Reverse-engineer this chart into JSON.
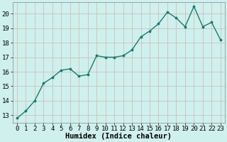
{
  "x": [
    0,
    1,
    2,
    3,
    4,
    5,
    6,
    7,
    8,
    9,
    10,
    11,
    12,
    13,
    14,
    15,
    16,
    17,
    18,
    19,
    20,
    21,
    22,
    23
  ],
  "y": [
    12.8,
    13.3,
    14.0,
    15.2,
    15.6,
    16.1,
    16.2,
    15.7,
    15.8,
    17.1,
    17.0,
    17.0,
    17.1,
    17.5,
    18.4,
    18.8,
    19.3,
    20.1,
    19.7,
    19.1,
    20.5,
    19.1,
    19.4,
    18.2
  ],
  "line_color": "#1a7a6e",
  "marker": ".",
  "bg_color": "#cff0ec",
  "grid_color": "#c8b8b8",
  "xlabel": "Humidex (Indice chaleur)",
  "xlim": [
    -0.5,
    23.5
  ],
  "ylim": [
    12.5,
    20.8
  ],
  "yticks": [
    13,
    14,
    15,
    16,
    17,
    18,
    19,
    20
  ],
  "xticks": [
    0,
    1,
    2,
    3,
    4,
    5,
    6,
    7,
    8,
    9,
    10,
    11,
    12,
    13,
    14,
    15,
    16,
    17,
    18,
    19,
    20,
    21,
    22,
    23
  ],
  "tick_fontsize": 6.5,
  "xlabel_fontsize": 7.5,
  "line_width": 1.0,
  "marker_size": 3.5
}
